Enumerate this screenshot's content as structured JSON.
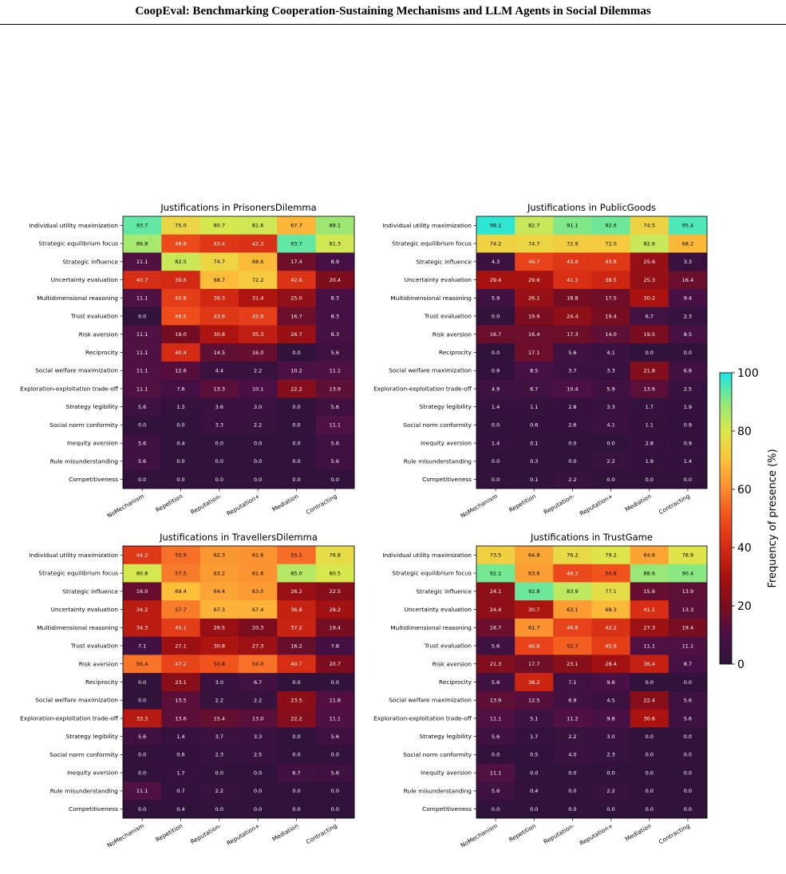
{
  "page": {
    "header_title": "CoopEval: Benchmarking Cooperation-Sustaining Mechanisms and LLM Agents in Social Dilemmas"
  },
  "colorbar": {
    "label": "Frequency of presence (%)",
    "ticks": [
      "0",
      "20",
      "40",
      "60",
      "80",
      "100"
    ],
    "range": [
      0,
      100
    ],
    "colormap": "turbo-like (dark purple → red → orange → yellow → green → cyan)"
  },
  "chart_data": [
    {
      "type": "heatmap",
      "title": "Justifications in PrisonersDilemma",
      "columns": [
        "NoMechanism",
        "Repetition",
        "Reputation-",
        "Reputation+",
        "Mediation",
        "Contracting"
      ],
      "rows": [
        "Individual utility maximization",
        "Strategic equilibrium focus",
        "Strategic influence",
        "Uncertainty evaluation",
        "Multidimensional reasoning",
        "Trust evaluation",
        "Risk aversion",
        "Reciprocity",
        "Social welfare maximization",
        "Exploration-exploitation trade-off",
        "Strategy legibility",
        "Social norm conformity",
        "Inequity aversion",
        "Rule misunderstanding",
        "Competitiveness"
      ],
      "values": [
        [
          93.7,
          75.0,
          80.7,
          81.6,
          67.7,
          88.1
        ],
        [
          86.8,
          48.8,
          43.4,
          42.3,
          93.7,
          81.3
        ],
        [
          11.1,
          82.5,
          74.7,
          68.6,
          17.4,
          8.9
        ],
        [
          40.7,
          39.6,
          68.7,
          72.2,
          42.6,
          20.4
        ],
        [
          11.1,
          45.8,
          39.3,
          31.4,
          25.0,
          8.3
        ],
        [
          0.0,
          49.5,
          43.9,
          45.9,
          16.7,
          8.3
        ],
        [
          11.1,
          19.0,
          30.8,
          35.3,
          26.7,
          8.3
        ],
        [
          11.1,
          40.4,
          14.5,
          16.0,
          0.0,
          5.6
        ],
        [
          11.1,
          12.6,
          4.4,
          2.2,
          10.2,
          11.1
        ],
        [
          11.1,
          7.6,
          13.3,
          10.1,
          22.2,
          13.9
        ],
        [
          5.6,
          1.3,
          3.6,
          3.0,
          0.0,
          5.6
        ],
        [
          0.0,
          0.0,
          3.3,
          2.2,
          0.0,
          11.1
        ],
        [
          5.6,
          0.4,
          0.0,
          0.0,
          0.0,
          5.6
        ],
        [
          5.6,
          0.0,
          0.0,
          0.0,
          0.0,
          5.6
        ],
        [
          0.0,
          0.0,
          0.0,
          0.0,
          0.0,
          0.0
        ]
      ]
    },
    {
      "type": "heatmap",
      "title": "Justifications in PublicGoods",
      "columns": [
        "NoMechanism",
        "Repetition",
        "Reputation-",
        "Reputation+",
        "Mediation",
        "Contracting"
      ],
      "rows": [
        "Individual utility maximization",
        "Strategic equilibrium focus",
        "Strategic influence",
        "Uncertainty evaluation",
        "Multidimensional reasoning",
        "Trust evaluation",
        "Risk aversion",
        "Reciprocity",
        "Social welfare maximization",
        "Exploration-exploitation trade-off",
        "Strategy legibility",
        "Social norm conformity",
        "Inequity aversion",
        "Rule misunderstanding",
        "Competitiveness"
      ],
      "values": [
        [
          98.1,
          82.7,
          91.1,
          92.6,
          74.5,
          95.4
        ],
        [
          74.2,
          74.7,
          72.9,
          72.0,
          82.6,
          68.2
        ],
        [
          4.3,
          46.7,
          43.6,
          43.8,
          25.6,
          3.3
        ],
        [
          29.4,
          29.6,
          41.3,
          38.5,
          25.3,
          16.4
        ],
        [
          5.9,
          26.1,
          18.8,
          17.5,
          30.2,
          9.4
        ],
        [
          0.0,
          19.9,
          24.4,
          19.4,
          6.7,
          2.3
        ],
        [
          16.7,
          16.4,
          17.3,
          14.0,
          19.5,
          8.5
        ],
        [
          0.0,
          17.1,
          5.6,
          4.1,
          0.0,
          0.0
        ],
        [
          0.9,
          8.5,
          3.7,
          3.3,
          21.8,
          6.8
        ],
        [
          4.9,
          6.7,
          10.4,
          5.9,
          13.6,
          2.5
        ],
        [
          1.4,
          1.1,
          2.8,
          3.3,
          1.7,
          1.9
        ],
        [
          0.0,
          0.6,
          2.6,
          4.1,
          1.1,
          0.9
        ],
        [
          1.4,
          0.1,
          0.0,
          0.0,
          2.8,
          0.9
        ],
        [
          0.0,
          0.3,
          0.0,
          2.2,
          1.9,
          1.4
        ],
        [
          0.0,
          0.1,
          2.2,
          0.0,
          0.0,
          0.0
        ]
      ]
    },
    {
      "type": "heatmap",
      "title": "Justifications in TravellersDilemma",
      "columns": [
        "NoMechanism",
        "Repetition",
        "Reputation-",
        "Reputation+",
        "Mediation",
        "Contracting"
      ],
      "rows": [
        "Individual utility maximization",
        "Strategic equilibrium focus",
        "Strategic influence",
        "Uncertainty evaluation",
        "Multidimensional reasoning",
        "Trust evaluation",
        "Risk aversion",
        "Reciprocity",
        "Social welfare maximization",
        "Exploration-exploitation trade-off",
        "Strategy legibility",
        "Social norm conformity",
        "Inequity aversion",
        "Rule misunderstanding",
        "Competitiveness"
      ],
      "values": [
        [
          44.2,
          55.9,
          62.3,
          61.6,
          55.1,
          76.8
        ],
        [
          80.8,
          57.5,
          63.2,
          61.6,
          85.0,
          80.5
        ],
        [
          16.0,
          69.4,
          64.4,
          63.0,
          26.2,
          22.5
        ],
        [
          34.2,
          57.7,
          67.3,
          67.4,
          36.8,
          28.2
        ],
        [
          34.3,
          45.1,
          26.5,
          20.3,
          37.2,
          19.4
        ],
        [
          7.1,
          27.1,
          30.8,
          27.3,
          16.2,
          7.8
        ],
        [
          56.4,
          47.2,
          50.8,
          56.0,
          40.7,
          20.7
        ],
        [
          0.0,
          23.1,
          3.0,
          6.7,
          0.0,
          0.0
        ],
        [
          0.0,
          13.5,
          2.2,
          2.2,
          23.5,
          11.8
        ],
        [
          33.3,
          13.6,
          15.4,
          13.0,
          22.2,
          11.1
        ],
        [
          5.6,
          1.4,
          3.7,
          3.3,
          0.0,
          5.6
        ],
        [
          0.0,
          0.6,
          2.3,
          2.5,
          0.0,
          0.0
        ],
        [
          0.0,
          1.7,
          0.0,
          0.0,
          6.7,
          5.6
        ],
        [
          11.1,
          0.7,
          2.2,
          0.0,
          0.0,
          0.0
        ],
        [
          0.0,
          0.4,
          0.0,
          0.0,
          0.0,
          0.0
        ]
      ]
    },
    {
      "type": "heatmap",
      "title": "Justifications in TrustGame",
      "columns": [
        "NoMechanism",
        "Repetition",
        "Reputation-",
        "Reputation+",
        "Mediation",
        "Contracting"
      ],
      "rows": [
        "Individual utility maximization",
        "Strategic equilibrium focus",
        "Strategic influence",
        "Uncertainty evaluation",
        "Multidimensional reasoning",
        "Trust evaluation",
        "Risk aversion",
        "Reciprocity",
        "Social welfare maximization",
        "Exploration-exploitation trade-off",
        "Strategy legibility",
        "Social norm conformity",
        "Inequity aversion",
        "Rule misunderstanding",
        "Competitiveness"
      ],
      "values": [
        [
          73.5,
          64.8,
          76.2,
          79.2,
          64.6,
          78.9
        ],
        [
          92.1,
          63.6,
          48.3,
          50.8,
          88.6,
          90.4
        ],
        [
          24.1,
          92.8,
          83.9,
          77.1,
          15.6,
          13.9
        ],
        [
          24.4,
          30.7,
          63.1,
          68.3,
          41.1,
          13.3
        ],
        [
          16.7,
          61.7,
          46.8,
          42.2,
          27.3,
          19.4
        ],
        [
          5.6,
          46.8,
          52.7,
          45.6,
          11.1,
          11.1
        ],
        [
          21.3,
          17.7,
          23.1,
          28.4,
          36.4,
          8.7
        ],
        [
          5.6,
          38.2,
          7.1,
          9.6,
          0.0,
          0.0
        ],
        [
          13.9,
          12.5,
          6.9,
          4.5,
          22.4,
          5.6
        ],
        [
          11.1,
          5.1,
          11.2,
          9.8,
          30.6,
          5.6
        ],
        [
          5.6,
          1.7,
          2.2,
          3.0,
          0.0,
          0.0
        ],
        [
          0.0,
          0.5,
          4.0,
          2.3,
          0.0,
          0.0
        ],
        [
          11.1,
          0.0,
          0.0,
          0.0,
          0.0,
          0.0
        ],
        [
          5.6,
          0.4,
          0.0,
          2.2,
          0.0,
          0.0
        ],
        [
          0.0,
          0.0,
          0.0,
          0.0,
          0.0,
          0.0
        ]
      ]
    }
  ]
}
